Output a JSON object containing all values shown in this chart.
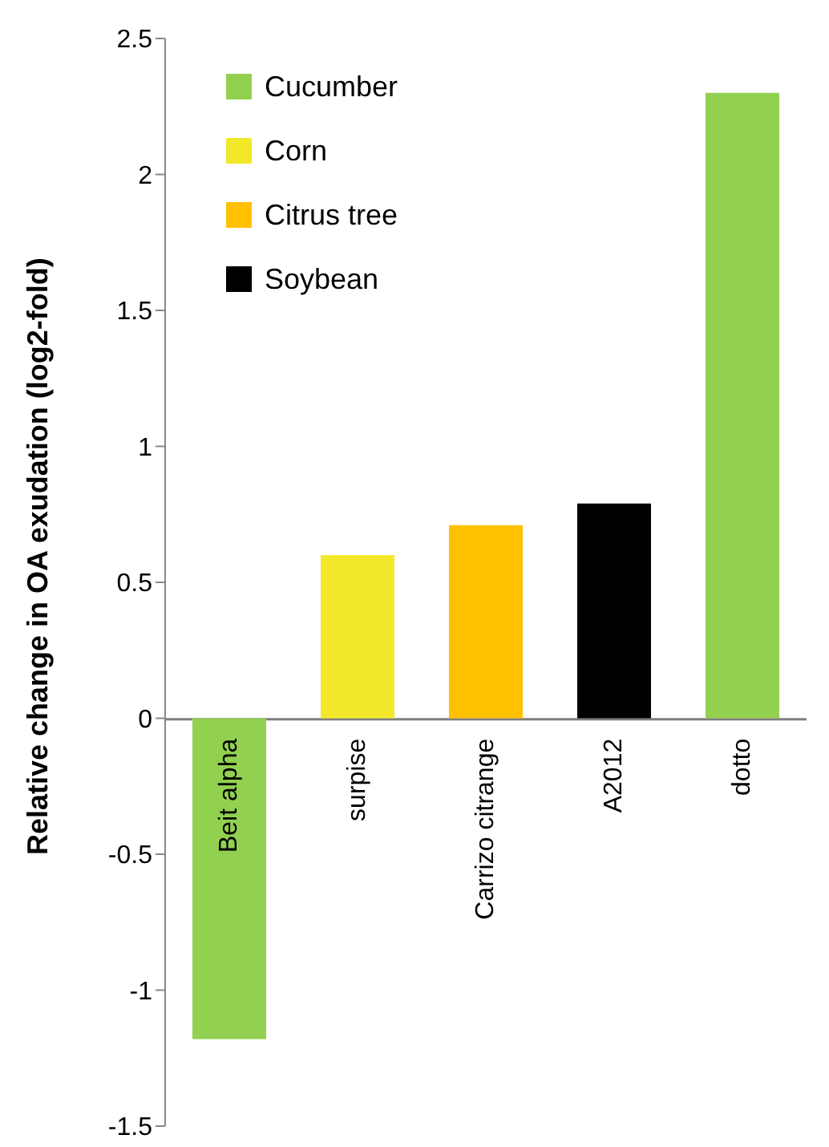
{
  "chart_data": {
    "type": "bar",
    "ylabel": "Relative change in OA exudation (log2-fold)",
    "categories": [
      "Beit alpha",
      "surpise",
      "Carrizo citrange",
      "A2012",
      "dotto"
    ],
    "series": [
      {
        "name": "Cucumber",
        "color": "#92d050",
        "values": [
          -1.18,
          null,
          null,
          null,
          2.3
        ]
      },
      {
        "name": "Corn",
        "color": "#f2e829",
        "values": [
          null,
          0.6,
          null,
          null,
          null
        ]
      },
      {
        "name": "Citrus tree",
        "color": "#ffc000",
        "values": [
          null,
          null,
          0.71,
          null,
          null
        ]
      },
      {
        "name": "Soybean",
        "color": "#000000",
        "values": [
          null,
          null,
          null,
          0.79,
          null
        ]
      }
    ],
    "stacked": true,
    "ylim": [
      -1.5,
      2.5
    ],
    "yticks": [
      -1.5,
      -1,
      -0.5,
      0,
      0.5,
      1,
      1.5,
      2,
      2.5
    ],
    "grid": false,
    "legend": "top left"
  }
}
